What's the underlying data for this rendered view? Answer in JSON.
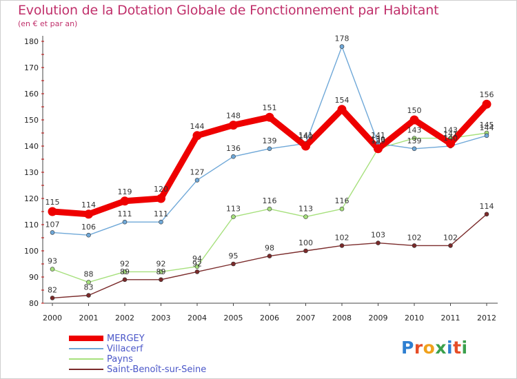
{
  "header": {
    "title": "Evolution de la Dotation Globale de Fonctionnement par Habitant",
    "subtitle": "(en € et par an)"
  },
  "logo": {
    "letters": [
      "P",
      "r",
      "o",
      "x",
      "i",
      "t",
      "i"
    ]
  },
  "chart_data": {
    "type": "line",
    "title": "Evolution de la Dotation Globale de Fonctionnement par Habitant",
    "subtitle": "(en € et par an)",
    "xlabel": "",
    "ylabel": "",
    "x": [
      "2000",
      "2001",
      "2002",
      "2003",
      "2004",
      "2005",
      "2006",
      "2007",
      "2008",
      "2009",
      "2010",
      "2011",
      "2012"
    ],
    "yticks": [
      80,
      90,
      100,
      110,
      120,
      130,
      140,
      150,
      160,
      170,
      180
    ],
    "ylim": [
      80,
      180
    ],
    "grid": false,
    "legend_position": "bottom-left",
    "series": [
      {
        "name": "MERGEY",
        "color": "#ee0000",
        "values": [
          115,
          114,
          119,
          120,
          144,
          148,
          151,
          140,
          154,
          139,
          150,
          141,
          156
        ]
      },
      {
        "name": "Villacerf",
        "color": "#6fa8d8",
        "values": [
          107,
          106,
          111,
          111,
          127,
          136,
          139,
          141,
          178,
          141,
          139,
          140,
          144
        ]
      },
      {
        "name": "Payns",
        "color": "#a6e07c",
        "values": [
          93,
          88,
          92,
          92,
          94,
          113,
          116,
          113,
          116,
          139,
          143,
          143,
          145
        ]
      },
      {
        "name": "Saint-Benoît-sur-Seine",
        "color": "#7a2a2a",
        "values": [
          82,
          83,
          89,
          89,
          92,
          95,
          98,
          100,
          102,
          103,
          102,
          102,
          114
        ]
      }
    ]
  }
}
